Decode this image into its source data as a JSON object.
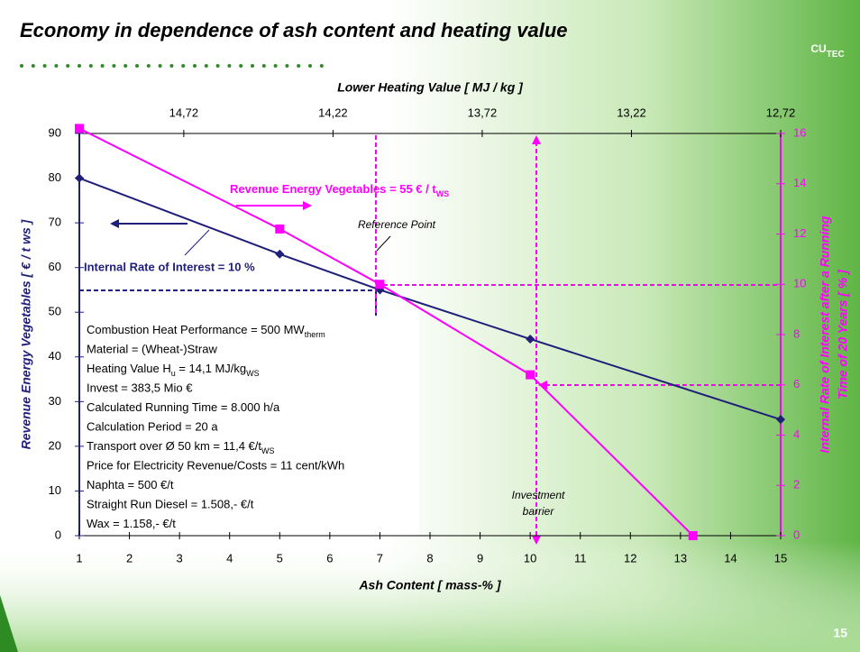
{
  "chart_data": {
    "type": "line",
    "title": "Economy in dependence of ash content and heating value",
    "logo": {
      "main": "CU",
      "sub": "TEC"
    },
    "page_number": "15",
    "xlabel": "Ash Content  [ mass-% ]",
    "x2label": "Lower Heating Value [ MJ / kg ]",
    "ylabel": "Revenue Energy Vegetables  [ € / t ws ]",
    "y2label": [
      "Internal Rate of Interest after a Running",
      "Time of 20 Years  [ % ]"
    ],
    "xlim": [
      1,
      15
    ],
    "xticks": [
      1,
      2,
      3,
      4,
      5,
      6,
      7,
      8,
      9,
      10,
      11,
      12,
      13,
      14,
      15
    ],
    "x2lim": [
      15.07,
      12.72
    ],
    "x2ticks": [
      {
        "value": 14.72,
        "label": "14,72"
      },
      {
        "value": 14.22,
        "label": "14,22"
      },
      {
        "value": 13.72,
        "label": "13,72"
      },
      {
        "value": 13.22,
        "label": "13,22"
      },
      {
        "value": 12.72,
        "label": "12,72"
      }
    ],
    "ylim": [
      0,
      90
    ],
    "yticks": [
      0,
      10,
      20,
      30,
      40,
      50,
      60,
      70,
      80,
      90
    ],
    "y2lim": [
      0,
      16
    ],
    "y2ticks": [
      0,
      2,
      4,
      6,
      8,
      10,
      12,
      14,
      16
    ],
    "series": [
      {
        "name": "Internal Rate of Interest = 10 %",
        "color": "#1f1f7a",
        "marker": "diamond",
        "x": [
          1,
          5,
          7,
          10,
          15
        ],
        "values": [
          80,
          63,
          55,
          44,
          26
        ]
      },
      {
        "name": [
          {
            "text": "Revenue Energy Vegetables = 55 € / t"
          },
          {
            "sub": "WS"
          }
        ],
        "color": "#ff00ff",
        "marker": "square",
        "axis": "y2",
        "x": [
          1,
          5,
          7,
          10,
          13.25
        ],
        "values": [
          16.2,
          12.2,
          10,
          6.4,
          0
        ]
      }
    ],
    "annotations": [
      "Reference Point",
      "Investment",
      "barrier"
    ],
    "info_box": [
      [
        {
          "text": "Combustion Heat Performance = 500 MW"
        },
        {
          "sub": "therm"
        }
      ],
      [
        {
          "text": "Material = (Wheat-)Straw"
        }
      ],
      [
        {
          "text": "Heating Value H"
        },
        {
          "sub": "u"
        },
        {
          "text": " = 14,1 MJ/kg"
        },
        {
          "sub": "WS"
        }
      ],
      [
        {
          "text": "Invest = 383,5 Mio €"
        }
      ],
      [
        {
          "text": "Calculated Running Time = 8.000 h/a"
        }
      ],
      [
        {
          "text": "Calculation Period = 20 a"
        }
      ],
      [
        {
          "text": "Transport over Ø 50 km = 11,4 €/t"
        },
        {
          "sub": "WS"
        }
      ],
      [
        {
          "text": "Price for Electricity Revenue/Costs = 11 cent/kWh"
        }
      ],
      [
        {
          "text": "Naphta = 500 €/t"
        }
      ],
      [
        {
          "text": "Straight Run Diesel = 1.508,- €/t"
        }
      ],
      [
        {
          "text": "Wax = 1.158,- €/t"
        }
      ]
    ]
  }
}
